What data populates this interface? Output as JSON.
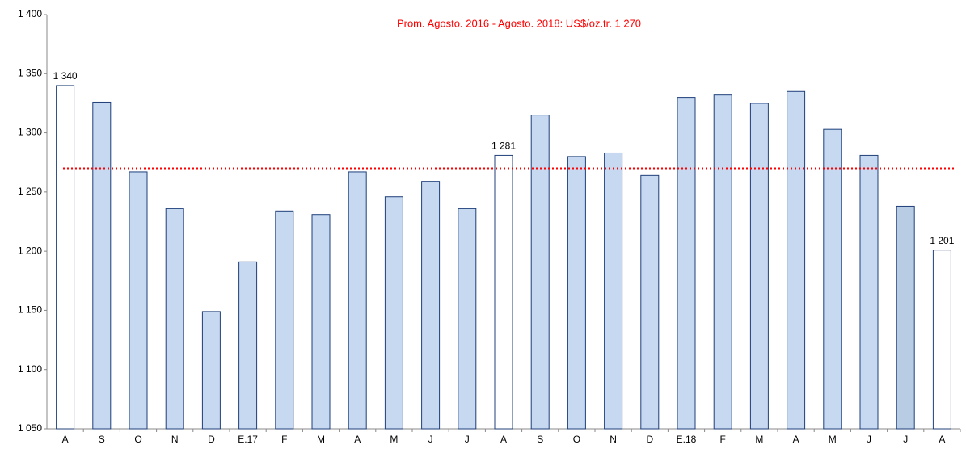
{
  "chart_data": {
    "type": "bar",
    "title": "Prom. Agosto. 2016 - Agosto. 2018: US$/oz.tr. 1 270",
    "categories": [
      "A",
      "S",
      "O",
      "N",
      "D",
      "E.17",
      "F",
      "M",
      "A",
      "M",
      "J",
      "J",
      "A",
      "S",
      "O",
      "N",
      "D",
      "E.18",
      "F",
      "M",
      "A",
      "M",
      "J",
      "J",
      "A"
    ],
    "values": [
      1340,
      1326,
      1267,
      1236,
      1149,
      1191,
      1234,
      1231,
      1267,
      1246,
      1259,
      1236,
      1281,
      1315,
      1280,
      1283,
      1264,
      1330,
      1332,
      1325,
      1335,
      1303,
      1281,
      1238,
      1201
    ],
    "value_labels": [
      "1 340",
      null,
      null,
      null,
      null,
      null,
      null,
      null,
      null,
      null,
      null,
      null,
      "1 281",
      null,
      null,
      null,
      null,
      null,
      null,
      null,
      null,
      null,
      null,
      null,
      "1 201"
    ],
    "colors": [
      "#ffffff",
      "#c6d9f1",
      "#c6d9f1",
      "#c6d9f1",
      "#c6d9f1",
      "#c6d9f1",
      "#c6d9f1",
      "#c6d9f1",
      "#c6d9f1",
      "#c6d9f1",
      "#c6d9f1",
      "#c6d9f1",
      "#ffffff",
      "#c6d9f1",
      "#c6d9f1",
      "#c6d9f1",
      "#c6d9f1",
      "#c6d9f1",
      "#c6d9f1",
      "#c6d9f1",
      "#c6d9f1",
      "#c6d9f1",
      "#c6d9f1",
      "#b8cce4",
      "#ffffff"
    ],
    "edge_color": "#1f3f7a",
    "average": 1270,
    "average_color": "#ff0000",
    "ylim": [
      1050,
      1400
    ],
    "yticks": [
      {
        "value": 1050,
        "label": "1 050"
      },
      {
        "value": 1100,
        "label": "1 100"
      },
      {
        "value": 1150,
        "label": "1 150"
      },
      {
        "value": 1200,
        "label": "1 200"
      },
      {
        "value": 1250,
        "label": "1 250"
      },
      {
        "value": 1300,
        "label": "1 300"
      },
      {
        "value": 1350,
        "label": "1 350"
      },
      {
        "value": 1400,
        "label": "1 400"
      }
    ]
  }
}
